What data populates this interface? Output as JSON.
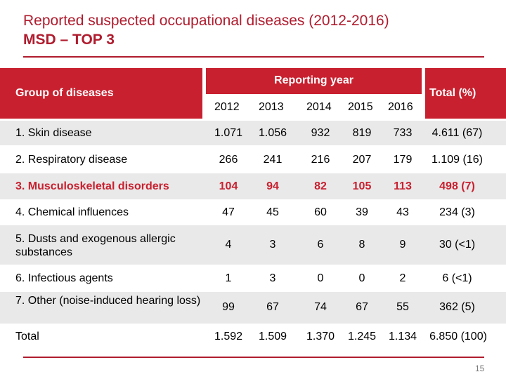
{
  "title": {
    "line1": "Reported suspected occupational diseases (2012-2016)",
    "line2": "MSD – TOP 3"
  },
  "table": {
    "header": {
      "group": "Group of diseases",
      "reporting_year": "Reporting year",
      "total": "Total (%)",
      "years": [
        "2012",
        "2013",
        "2014",
        "2015",
        "2016"
      ]
    },
    "rows": [
      {
        "label": "1. Skin disease",
        "values": [
          "1.071",
          "1.056",
          "932",
          "819",
          "733"
        ],
        "total": "4.611 (67)"
      },
      {
        "label": "2. Respiratory disease",
        "values": [
          "266",
          "241",
          "216",
          "207",
          "179"
        ],
        "total": "1.109 (16)"
      },
      {
        "label": "3. Musculoskeletal disorders",
        "values": [
          "104",
          "94",
          "82",
          "105",
          "113"
        ],
        "total": "498 (7)"
      },
      {
        "label": "4. Chemical influences",
        "values": [
          "47",
          "45",
          "60",
          "39",
          "43"
        ],
        "total": "234 (3)"
      },
      {
        "label": "5. Dusts and exogenous allergic substances",
        "values": [
          "4",
          "3",
          "6",
          "8",
          "9"
        ],
        "total": "30 (<1)"
      },
      {
        "label": "6. Infectious agents",
        "values": [
          "1",
          "3",
          "0",
          "0",
          "2"
        ],
        "total": "6 (<1)"
      },
      {
        "label": "7. Other (noise-induced hearing loss)",
        "values": [
          "99",
          "67",
          "74",
          "67",
          "55"
        ],
        "total": "362 (5)"
      },
      {
        "label": "Total",
        "values": [
          "1.592",
          "1.509",
          "1.370",
          "1.245",
          "1.134"
        ],
        "total": "6.850 (100)"
      }
    ]
  },
  "page_number": "15",
  "colors": {
    "accent": "#c8202f",
    "title": "#b01c2e",
    "row_shade": "#e9e9e9"
  }
}
